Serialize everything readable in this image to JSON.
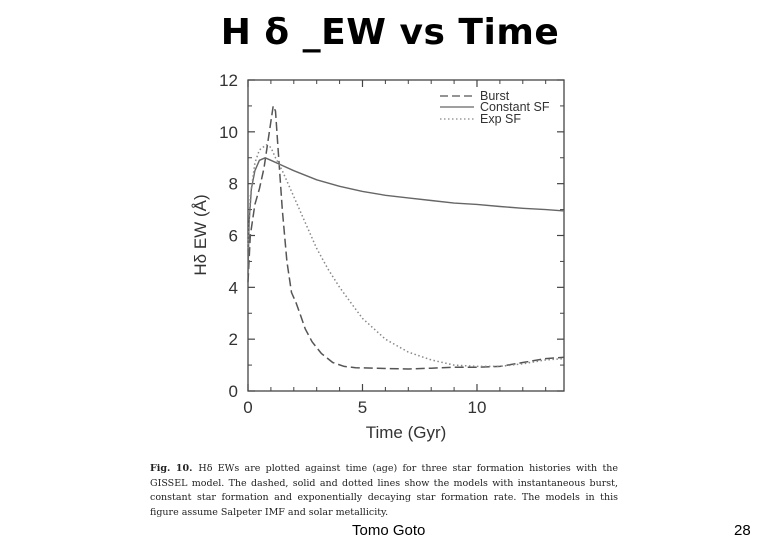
{
  "slide": {
    "title": "H δ _EW vs Time",
    "author": "Tomo Goto",
    "page_number": "28"
  },
  "caption": {
    "label": "Fig. 10.",
    "text": "Hδ EWs are plotted against time (age) for three star formation histories with the GISSEL model. The dashed, solid and dotted lines show the models with instantaneous burst, constant star formation and exponentially decaying star formation rate. The models in this figure assume Salpeter IMF and solar metallicity."
  },
  "chart_data": {
    "type": "line",
    "title": "",
    "xlabel": "Time  (Gyr)",
    "ylabel": "Hδ   EW  (Å)",
    "xlim": [
      0,
      13.8
    ],
    "ylim": [
      0,
      12
    ],
    "x_ticks": [
      0,
      5,
      10
    ],
    "y_ticks": [
      0,
      2,
      4,
      6,
      8,
      10,
      12
    ],
    "grid": false,
    "legend_position": "top-right",
    "colors": {
      "burst": "#555555",
      "constant": "#666666",
      "exp": "#888888"
    },
    "series": [
      {
        "name": "Burst",
        "style": "dashed",
        "x": [
          0,
          0.1,
          0.3,
          0.5,
          0.7,
          0.9,
          1.1,
          1.2,
          1.3,
          1.5,
          1.7,
          1.9,
          2.0,
          2.1,
          2.3,
          2.5,
          2.8,
          3.2,
          3.7,
          4.2,
          4.7,
          5.5,
          7,
          8,
          9,
          10,
          11,
          12,
          13,
          13.8
        ],
        "y": [
          4.2,
          6.0,
          7.2,
          7.8,
          8.6,
          9.8,
          11.0,
          10.8,
          9.5,
          7.0,
          5.0,
          3.8,
          3.6,
          3.4,
          2.9,
          2.4,
          1.9,
          1.45,
          1.1,
          0.95,
          0.9,
          0.88,
          0.85,
          0.88,
          0.92,
          0.92,
          0.95,
          1.1,
          1.25,
          1.3
        ]
      },
      {
        "name": "Constant SF",
        "style": "solid",
        "x": [
          0,
          0.05,
          0.15,
          0.3,
          0.5,
          0.75,
          1.0,
          1.5,
          2.0,
          3,
          4,
          5,
          6,
          7,
          8,
          9,
          10,
          11,
          12,
          13,
          13.8
        ],
        "y": [
          4.5,
          6.5,
          7.8,
          8.5,
          8.9,
          9.0,
          8.9,
          8.7,
          8.5,
          8.15,
          7.9,
          7.7,
          7.55,
          7.45,
          7.35,
          7.25,
          7.2,
          7.12,
          7.05,
          7.0,
          6.95
        ]
      },
      {
        "name": "Exp SF",
        "style": "dotted",
        "x": [
          0,
          0.1,
          0.3,
          0.5,
          0.8,
          1.0,
          1.2,
          1.5,
          2.0,
          2.5,
          3,
          3.5,
          4,
          4.5,
          5,
          6,
          7,
          8,
          9,
          10,
          11,
          12,
          13,
          13.8
        ],
        "y": [
          5.5,
          7.5,
          8.8,
          9.3,
          9.5,
          9.4,
          9.0,
          8.5,
          7.5,
          6.5,
          5.5,
          4.7,
          4.0,
          3.4,
          2.8,
          2.0,
          1.5,
          1.2,
          1.0,
          0.95,
          0.95,
          1.05,
          1.2,
          1.25
        ]
      }
    ]
  }
}
